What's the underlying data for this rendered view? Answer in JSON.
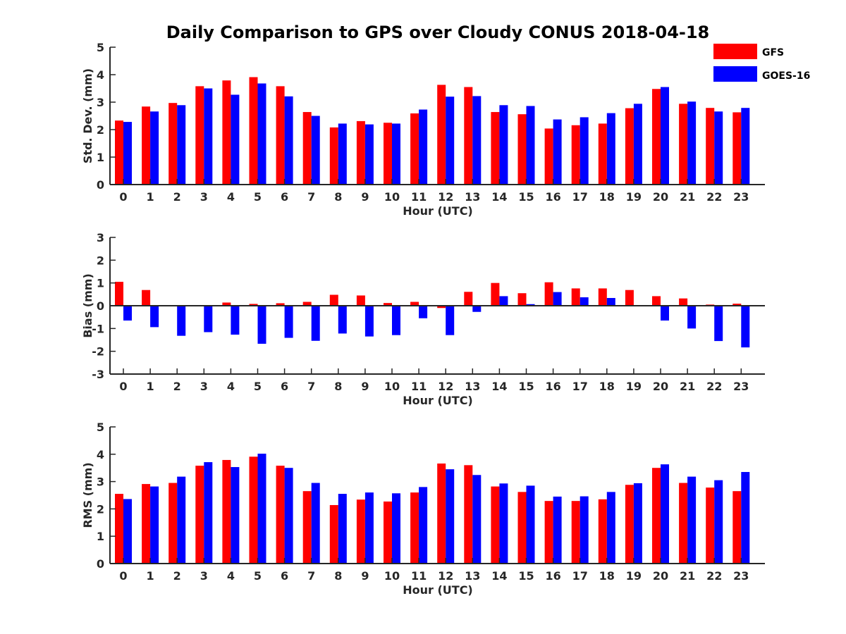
{
  "title": "Daily Comparison to GPS over Cloudy CONUS 2018-04-18",
  "legend": {
    "placement": "top-right",
    "entries": [
      {
        "name": "GFS",
        "color": "#ff0000"
      },
      {
        "name": "GOES-16",
        "color": "#0000ff"
      }
    ]
  },
  "chart_data": [
    {
      "type": "bar",
      "xlabel": "Hour (UTC)",
      "ylabel": "Std. Dev. (mm)",
      "ylim": [
        0,
        5
      ],
      "yticks": [
        0,
        1,
        2,
        3,
        4,
        5
      ],
      "grid": false,
      "categories": [
        "0",
        "1",
        "2",
        "3",
        "4",
        "5",
        "6",
        "7",
        "8",
        "9",
        "10",
        "11",
        "12",
        "13",
        "14",
        "15",
        "16",
        "17",
        "18",
        "19",
        "20",
        "21",
        "22",
        "23"
      ],
      "series": [
        {
          "name": "GFS",
          "color": "#ff0000",
          "values": [
            2.33,
            2.84,
            2.97,
            3.58,
            3.79,
            3.91,
            3.58,
            2.64,
            2.08,
            2.31,
            2.25,
            2.59,
            3.63,
            3.55,
            2.64,
            2.56,
            2.04,
            2.16,
            2.22,
            2.78,
            3.48,
            2.94,
            2.79,
            2.63
          ]
        },
        {
          "name": "GOES-16",
          "color": "#0000ff",
          "values": [
            2.28,
            2.66,
            2.89,
            3.5,
            3.27,
            3.68,
            3.21,
            2.5,
            2.22,
            2.19,
            2.22,
            2.73,
            3.2,
            3.22,
            2.89,
            2.86,
            2.37,
            2.45,
            2.6,
            2.94,
            3.55,
            3.02,
            2.66,
            2.79
          ]
        }
      ]
    },
    {
      "type": "bar",
      "xlabel": "Hour (UTC)",
      "ylabel": "Bias (mm)",
      "ylim": [
        -3,
        3
      ],
      "yticks": [
        -3,
        -2,
        -1,
        0,
        1,
        2,
        3
      ],
      "grid": false,
      "categories": [
        "0",
        "1",
        "2",
        "3",
        "4",
        "5",
        "6",
        "7",
        "8",
        "9",
        "10",
        "11",
        "12",
        "13",
        "14",
        "15",
        "16",
        "17",
        "18",
        "19",
        "20",
        "21",
        "22",
        "23"
      ],
      "series": [
        {
          "name": "GFS",
          "color": "#ff0000",
          "values": [
            1.05,
            0.69,
            0.02,
            -0.03,
            0.14,
            0.08,
            0.11,
            0.17,
            0.48,
            0.45,
            0.12,
            0.17,
            -0.1,
            0.61,
            1.0,
            0.55,
            1.03,
            0.76,
            0.76,
            0.69,
            0.42,
            0.32,
            0.05,
            0.09
          ]
        },
        {
          "name": "GOES-16",
          "color": "#0000ff",
          "values": [
            -0.65,
            -0.94,
            -1.32,
            -1.16,
            -1.27,
            -1.67,
            -1.41,
            -1.54,
            -1.22,
            -1.35,
            -1.29,
            -0.55,
            -1.29,
            -0.27,
            0.42,
            0.07,
            0.6,
            0.37,
            0.34,
            0.0,
            -0.65,
            -1.0,
            -1.55,
            -1.83
          ]
        }
      ]
    },
    {
      "type": "bar",
      "xlabel": "Hour (UTC)",
      "ylabel": "RMS (mm)",
      "ylim": [
        0,
        5
      ],
      "yticks": [
        0,
        1,
        2,
        3,
        4,
        5
      ],
      "grid": false,
      "categories": [
        "0",
        "1",
        "2",
        "3",
        "4",
        "5",
        "6",
        "7",
        "8",
        "9",
        "10",
        "11",
        "12",
        "13",
        "14",
        "15",
        "16",
        "17",
        "18",
        "19",
        "20",
        "21",
        "22",
        "23"
      ],
      "series": [
        {
          "name": "GFS",
          "color": "#ff0000",
          "values": [
            2.55,
            2.91,
            2.95,
            3.58,
            3.79,
            3.91,
            3.58,
            2.65,
            2.14,
            2.34,
            2.27,
            2.6,
            3.66,
            3.6,
            2.82,
            2.62,
            2.29,
            2.29,
            2.35,
            2.88,
            3.5,
            2.95,
            2.78,
            2.65
          ]
        },
        {
          "name": "GOES-16",
          "color": "#0000ff",
          "values": [
            2.36,
            2.82,
            3.18,
            3.71,
            3.53,
            4.02,
            3.5,
            2.95,
            2.55,
            2.6,
            2.57,
            2.8,
            3.45,
            3.24,
            2.93,
            2.85,
            2.45,
            2.46,
            2.62,
            2.94,
            3.63,
            3.18,
            3.05,
            3.35
          ]
        }
      ]
    }
  ]
}
